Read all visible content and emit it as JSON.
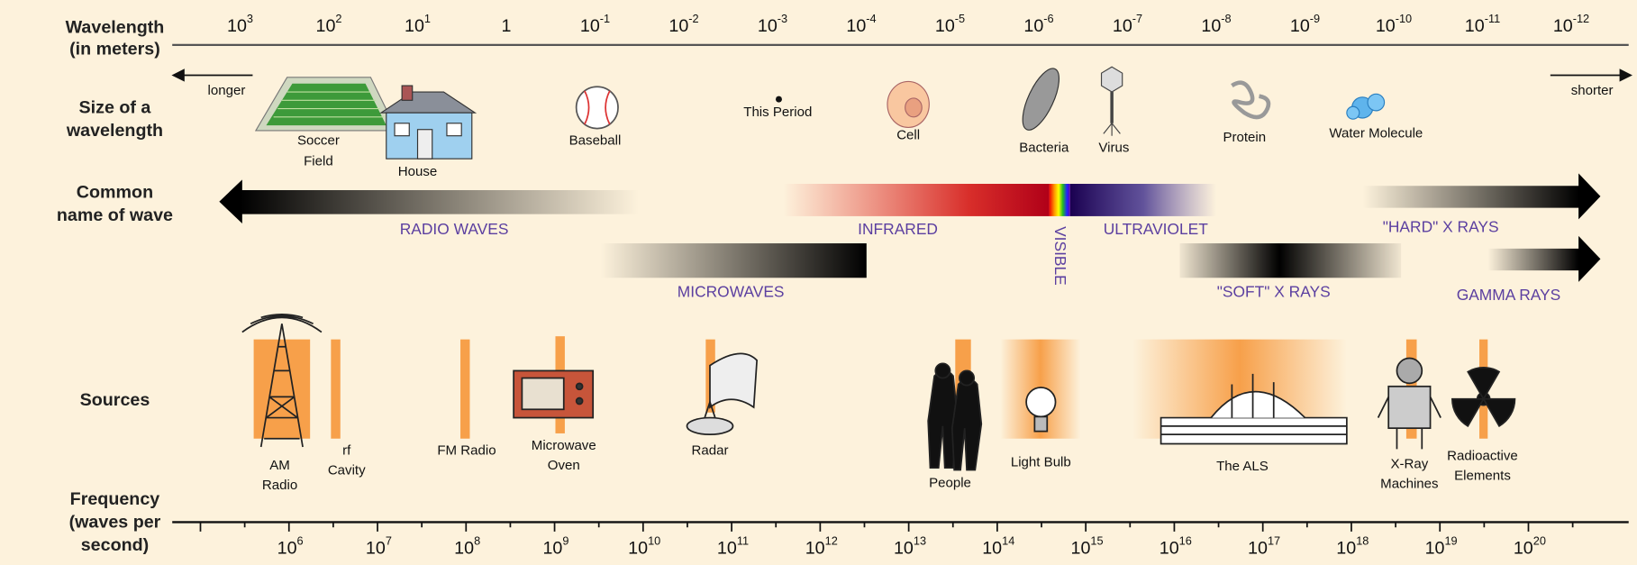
{
  "row_labels": {
    "wavelength": [
      "Wavelength",
      "(in meters)"
    ],
    "size": [
      "Size of a",
      "wavelength"
    ],
    "common_name": [
      "Common",
      "name of wave"
    ],
    "sources": [
      "Sources"
    ],
    "frequency": [
      "Frequency",
      "(waves per",
      "second)"
    ]
  },
  "wavelength_ticks": [
    {
      "base": "10",
      "exp": "3"
    },
    {
      "base": "10",
      "exp": "2"
    },
    {
      "base": "10",
      "exp": "1"
    },
    {
      "base": "1"
    },
    {
      "base": "10",
      "exp": "-1"
    },
    {
      "base": "10",
      "exp": "-2"
    },
    {
      "base": "10",
      "exp": "-3"
    },
    {
      "base": "10",
      "exp": "-4"
    },
    {
      "base": "10",
      "exp": "-5"
    },
    {
      "base": "10",
      "exp": "-6"
    },
    {
      "base": "10",
      "exp": "-7"
    },
    {
      "base": "10",
      "exp": "-8"
    },
    {
      "base": "10",
      "exp": "-9"
    },
    {
      "base": "10",
      "exp": "-10"
    },
    {
      "base": "10",
      "exp": "-11"
    },
    {
      "base": "10",
      "exp": "-12"
    }
  ],
  "direction": {
    "left": "longer",
    "right": "shorter"
  },
  "size_examples": [
    [
      "Soccer",
      "Field"
    ],
    [
      "House"
    ],
    [
      "Baseball"
    ],
    [
      "This Period"
    ],
    [
      "Cell"
    ],
    [
      "Bacteria"
    ],
    [
      "Virus"
    ],
    [
      "Protein"
    ],
    [
      "Water Molecule"
    ]
  ],
  "waves": [
    "RADIO WAVES",
    "INFRARED",
    "VISIBLE",
    "ULTRAVIOLET",
    "\"HARD\" X RAYS",
    "MICROWAVES",
    "\"SOFT\" X RAYS",
    "GAMMA RAYS"
  ],
  "sources": [
    [
      "AM",
      "Radio"
    ],
    [
      "rf",
      "Cavity"
    ],
    [
      "FM Radio"
    ],
    [
      "Microwave",
      "Oven"
    ],
    [
      "Radar"
    ],
    [
      "People"
    ],
    [
      "Light Bulb"
    ],
    [
      "The ALS"
    ],
    [
      "X-Ray",
      "Machines"
    ],
    [
      "Radioactive",
      "Elements"
    ]
  ],
  "frequency_ticks": [
    {
      "base": "10",
      "exp": "6"
    },
    {
      "base": "10",
      "exp": "7"
    },
    {
      "base": "10",
      "exp": "8"
    },
    {
      "base": "10",
      "exp": "9"
    },
    {
      "base": "10",
      "exp": "10"
    },
    {
      "base": "10",
      "exp": "11"
    },
    {
      "base": "10",
      "exp": "12"
    },
    {
      "base": "10",
      "exp": "13"
    },
    {
      "base": "10",
      "exp": "14"
    },
    {
      "base": "10",
      "exp": "15"
    },
    {
      "base": "10",
      "exp": "16"
    },
    {
      "base": "10",
      "exp": "17"
    },
    {
      "base": "10",
      "exp": "18"
    },
    {
      "base": "10",
      "exp": "19"
    },
    {
      "base": "10",
      "exp": "20"
    }
  ]
}
